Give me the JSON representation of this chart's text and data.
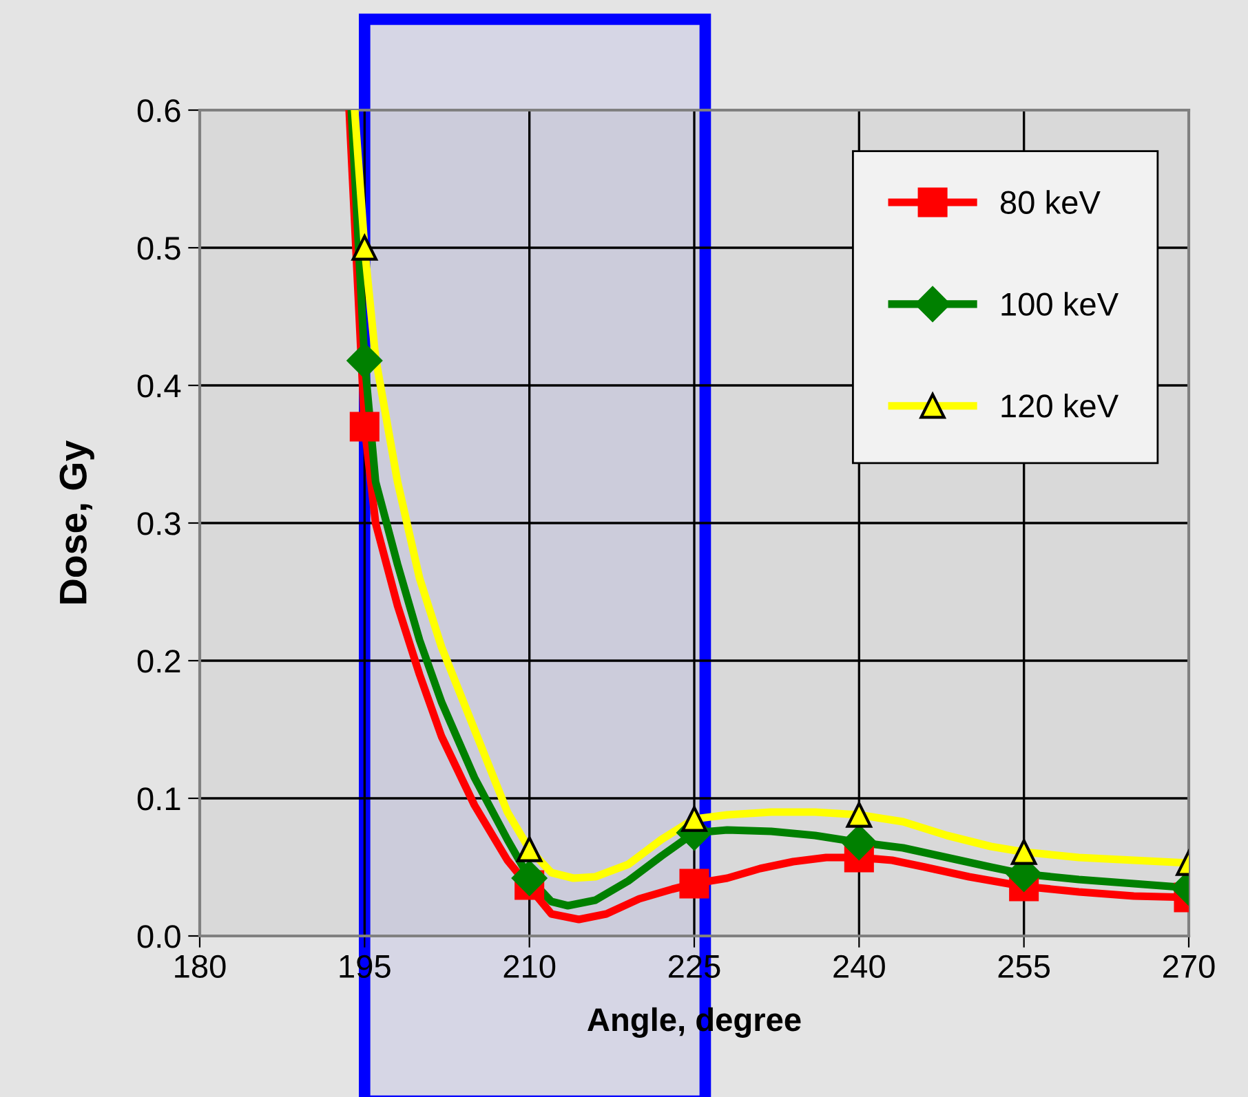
{
  "chart_data": {
    "type": "line",
    "xlabel": "Angle, degree",
    "ylabel": "Dose, Gy",
    "xlim": [
      180,
      270
    ],
    "xticks": [
      180,
      195,
      210,
      225,
      240,
      255,
      270
    ],
    "ylim": [
      0,
      0.6
    ],
    "yticks": [
      {
        "value": 0,
        "label": "0.0"
      },
      0.1,
      0.2,
      0.3,
      0.4,
      0.5,
      0.6
    ],
    "grid": true,
    "legend": "top right",
    "line_style": "solid",
    "bands": [
      {
        "axis": "x",
        "from": 195,
        "to": 226,
        "color": "#0000ff"
      }
    ],
    "series": [
      {
        "color": "#ff0000",
        "marker": "none",
        "x": [
          193.6,
          195,
          196,
          198,
          200,
          202,
          205,
          208,
          212,
          214.5,
          217,
          220,
          223,
          225,
          228,
          231,
          234,
          237,
          240,
          243,
          246,
          250,
          255,
          260,
          265,
          270
        ],
        "values": [
          0.6,
          0.37,
          0.3,
          0.24,
          0.19,
          0.145,
          0.095,
          0.055,
          0.016,
          0.012,
          0.016,
          0.027,
          0.034,
          0.038,
          0.042,
          0.049,
          0.054,
          0.057,
          0.057,
          0.055,
          0.05,
          0.043,
          0.036,
          0.032,
          0.029,
          0.028
        ]
      },
      {
        "color": "#008000",
        "marker": "none",
        "x": [
          193.8,
          195,
          196,
          198,
          200,
          202,
          205,
          208,
          210,
          212,
          213.5,
          216,
          219,
          222,
          225,
          228,
          232,
          236,
          240,
          244,
          248,
          252,
          255,
          260,
          265,
          270
        ],
        "values": [
          0.6,
          0.418,
          0.33,
          0.27,
          0.215,
          0.17,
          0.115,
          0.07,
          0.042,
          0.025,
          0.022,
          0.026,
          0.04,
          0.058,
          0.075,
          0.077,
          0.076,
          0.073,
          0.068,
          0.064,
          0.057,
          0.05,
          0.045,
          0.041,
          0.038,
          0.035
        ]
      },
      {
        "color": "#ffff00",
        "marker": "none",
        "x": [
          194.1,
          195,
          196,
          198,
          200,
          202,
          205,
          208,
          210,
          212,
          214,
          216,
          219,
          222,
          225,
          228,
          232,
          236,
          240,
          244,
          248,
          252,
          255,
          260,
          265,
          270
        ],
        "values": [
          0.6,
          0.5,
          0.42,
          0.33,
          0.26,
          0.21,
          0.15,
          0.09,
          0.063,
          0.046,
          0.042,
          0.043,
          0.052,
          0.07,
          0.085,
          0.088,
          0.09,
          0.09,
          0.088,
          0.083,
          0.073,
          0.065,
          0.061,
          0.057,
          0.055,
          0.053
        ]
      },
      {
        "type": "scatter",
        "name": "80 keV",
        "color": "#ff0000",
        "marker": "square",
        "x": [
          195,
          210,
          225,
          240,
          255,
          270
        ],
        "values": [
          0.37,
          0.037,
          0.038,
          0.057,
          0.036,
          0.028
        ]
      },
      {
        "type": "scatter",
        "name": "100 keV",
        "color": "#008000",
        "marker": "diamond",
        "x": [
          195,
          210,
          225,
          240,
          255,
          270
        ],
        "values": [
          0.418,
          0.042,
          0.075,
          0.068,
          0.045,
          0.035
        ]
      },
      {
        "type": "scatter",
        "name": "120 keV",
        "color": "#ffff00",
        "marker": "triangle",
        "x": [
          195,
          210,
          225,
          240,
          255,
          270
        ],
        "values": [
          0.5,
          0.063,
          0.085,
          0.088,
          0.061,
          0.053
        ]
      }
    ]
  }
}
